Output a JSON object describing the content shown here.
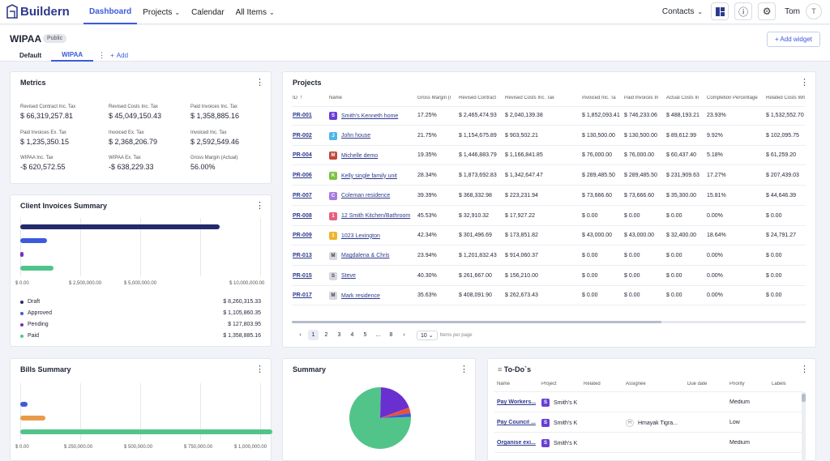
{
  "app": {
    "brand": "Buildern"
  },
  "nav": [
    {
      "label": "Dashboard",
      "active": true,
      "chevron": false
    },
    {
      "label": "Projects",
      "chevron": true
    },
    {
      "label": "Calendar",
      "chevron": false
    },
    {
      "label": "All Items",
      "chevron": true
    }
  ],
  "topright": {
    "contacts": "Contacts",
    "user": "Tom",
    "avatar": "T"
  },
  "page": {
    "title": "WIPAA",
    "badge": "Public",
    "add_widget": "Add widget"
  },
  "tabs": {
    "default": "Default",
    "active": "WIPAA",
    "add": "Add"
  },
  "metrics": {
    "title": "Metrics",
    "items": [
      {
        "label": "Revised Contract Inc. Tax",
        "value": "$ 66,319,257.81"
      },
      {
        "label": "Revised Costs Inc. Tax",
        "value": "$ 45,049,150.43"
      },
      {
        "label": "Paid Invoices Inc. Tax",
        "value": "$ 1,358,885.16"
      },
      {
        "label": "Paid Invoices Ex. Tax",
        "value": "$ 1,235,350.15"
      },
      {
        "label": "Invoiced Ex. Tax",
        "value": "$ 2,368,206.79"
      },
      {
        "label": "Invoiced Inc. Tax",
        "value": "$ 2,592,549.46"
      },
      {
        "label": "WIPAA Inc. Tax",
        "value": "-$ 620,572.55"
      },
      {
        "label": "WIPAA Ex. Tax",
        "value": "-$ 638,229.33"
      },
      {
        "label": "Gross Margin (Actual)",
        "value": "56.00%"
      }
    ]
  },
  "client_invoices": {
    "title": "Client Invoices Summary",
    "axis": [
      "$ 0.00",
      "$ 2,500,000.00",
      "$ 5,000,000.00",
      "$ 10,000,000.00"
    ],
    "axis_max": 10000000,
    "items": [
      {
        "label": "Draft",
        "value": "$ 8,260,315.33",
        "amount": 8260315.33,
        "color": "#232a6b"
      },
      {
        "label": "Approved",
        "value": "$ 1,105,860.35",
        "amount": 1105860.35,
        "color": "#3b5bdb"
      },
      {
        "label": "Pending",
        "value": "$ 127,803.95",
        "amount": 127803.95,
        "color": "#7b2cbf"
      },
      {
        "label": "Paid",
        "value": "$ 1,358,885.16",
        "amount": 1358885.16,
        "color": "#52c48a"
      }
    ]
  },
  "bills": {
    "title": "Bills Summary",
    "axis": [
      "$ 0.00",
      "$ 250,000.00",
      "$ 500,000.00",
      "$ 750,000.00",
      "$ 1,000,000.00"
    ],
    "axis_max": 1000000,
    "items": [
      {
        "amount": 32000,
        "color": "#3b5bdb"
      },
      {
        "amount": 105000,
        "color": "#e89b4a"
      },
      {
        "amount": 1050000,
        "color": "#52c48a"
      }
    ]
  },
  "projects": {
    "title": "Projects",
    "columns": [
      "ID",
      "Name",
      "Gross Margin (l",
      "Revised Contract",
      "Revised Costs Inc. Tax",
      "Invoiced Inc. Ta",
      "Paid Invoices In",
      "Actual Costs In",
      "Completion Percentage",
      "Related Costs Wit"
    ],
    "rows": [
      {
        "id": "PR-001",
        "tag": "S",
        "tagcolor": "#6a3fd6",
        "name": "Smith's Kenneth home",
        "gm": "17.25%",
        "rc": "$ 2,465,474.93",
        "rcost": "$ 2,040,139.38",
        "inv": "$ 1,852,093.41",
        "paid": "$ 746,233.06",
        "act": "$ 488,193.21",
        "comp": "23.93%",
        "rel": "$ 1,532,552.70"
      },
      {
        "id": "PR-002",
        "tag": "J",
        "tagcolor": "#4cb7e8",
        "name": "John house",
        "gm": "21.75%",
        "rc": "$ 1,154,675.89",
        "rcost": "$ 903,502.21",
        "inv": "$ 130,500.00",
        "paid": "$ 130,500.00",
        "act": "$ 89,612.99",
        "comp": "9.92%",
        "rel": "$ 102,095.75"
      },
      {
        "id": "PR-004",
        "tag": "M",
        "tagcolor": "#c4463a",
        "name": "Michelle demo",
        "gm": "19.35%",
        "rc": "$ 1,446,883.79",
        "rcost": "$ 1,166,841.85",
        "inv": "$ 76,000.00",
        "paid": "$ 76,000.00",
        "act": "$ 60,437.40",
        "comp": "5.18%",
        "rel": "$ 61,259.20"
      },
      {
        "id": "PR-006",
        "tag": "K",
        "tagcolor": "#7dc243",
        "name": "Kelly single family unit",
        "gm": "28.34%",
        "rc": "$ 1,873,692.83",
        "rcost": "$ 1,342,647.47",
        "inv": "$ 289,485.50",
        "paid": "$ 289,485.50",
        "act": "$ 231,909.63",
        "comp": "17.27%",
        "rel": "$ 207,439.03"
      },
      {
        "id": "PR-007",
        "tag": "C",
        "tagcolor": "#a77be0",
        "name": "Coleman residence",
        "gm": "39.39%",
        "rc": "$ 368,332.98",
        "rcost": "$ 223,231.94",
        "inv": "$ 73,666.60",
        "paid": "$ 73,666.60",
        "act": "$ 35,300.00",
        "comp": "15.81%",
        "rel": "$ 44,646.39"
      },
      {
        "id": "PR-008",
        "tag": "1",
        "tagcolor": "#e6607a",
        "name": "12 Smith Kitchen/Bathroom",
        "gm": "45.53%",
        "rc": "$ 32,910.32",
        "rcost": "$ 17,927.22",
        "inv": "$ 0.00",
        "paid": "$ 0.00",
        "act": "$ 0.00",
        "comp": "0.00%",
        "rel": "$ 0.00"
      },
      {
        "id": "PR-009",
        "tag": "1",
        "tagcolor": "#f0b429",
        "name": "1023 Lexington",
        "gm": "42.34%",
        "rc": "$ 301,496.69",
        "rcost": "$ 173,851.82",
        "inv": "$ 43,000.00",
        "paid": "$ 43,000.00",
        "act": "$ 32,400.00",
        "comp": "18.64%",
        "rel": "$ 24,791.27"
      },
      {
        "id": "PR-013",
        "tag": "M",
        "tagcolor": "#d6d8e0",
        "name": "Magdalena & Chris",
        "gm": "23.94%",
        "rc": "$ 1,201,832.43",
        "rcost": "$ 914,060.37",
        "inv": "$ 0.00",
        "paid": "$ 0.00",
        "act": "$ 0.00",
        "comp": "0.00%",
        "rel": "$ 0.00"
      },
      {
        "id": "PR-015",
        "tag": "S",
        "tagcolor": "#d6d8e0",
        "name": "Steve",
        "gm": "40.30%",
        "rc": "$ 261,667.00",
        "rcost": "$ 156,210.00",
        "inv": "$ 0.00",
        "paid": "$ 0.00",
        "act": "$ 0.00",
        "comp": "0.00%",
        "rel": "$ 0.00"
      },
      {
        "id": "PR-017",
        "tag": "M",
        "tagcolor": "#d6d8e0",
        "name": "Mark residence",
        "gm": "35.63%",
        "rc": "$ 408,091.90",
        "rcost": "$ 262,673.43",
        "inv": "$ 0.00",
        "paid": "$ 0.00",
        "act": "$ 0.00",
        "comp": "0.00%",
        "rel": "$ 0.00"
      }
    ],
    "pagination": {
      "pages": [
        "1",
        "2",
        "3",
        "4",
        "5",
        "...",
        "8"
      ],
      "current": "1",
      "per_page": "10",
      "per_page_label": "Items per page"
    }
  },
  "summary": {
    "title": "Summary",
    "slices": [
      {
        "pct": 76,
        "color": "#52c48a"
      },
      {
        "pct": 19,
        "color": "#6a2fd0"
      },
      {
        "pct": 3,
        "color": "#e5533d"
      },
      {
        "pct": 2,
        "color": "#3b5bdb"
      }
    ]
  },
  "todos": {
    "title": "To-Do`s",
    "columns": [
      "Name",
      "Project",
      "Related",
      "Assignee",
      "Due date",
      "Priority",
      "Labels"
    ],
    "rows": [
      {
        "name": "Pay Workers...",
        "tag": "S",
        "project": "Smith's K",
        "assignee": "",
        "assignee_initials": "",
        "priority": "Medium"
      },
      {
        "name": "Pay Council ...",
        "tag": "S",
        "project": "Smith's K",
        "assignee": "Hmayak Tigra...",
        "assignee_initials": "H",
        "priority": "Low"
      },
      {
        "name": "Organise exi...",
        "tag": "S",
        "project": "Smith's K",
        "assignee": "",
        "assignee_initials": "",
        "priority": "Medium"
      }
    ]
  }
}
